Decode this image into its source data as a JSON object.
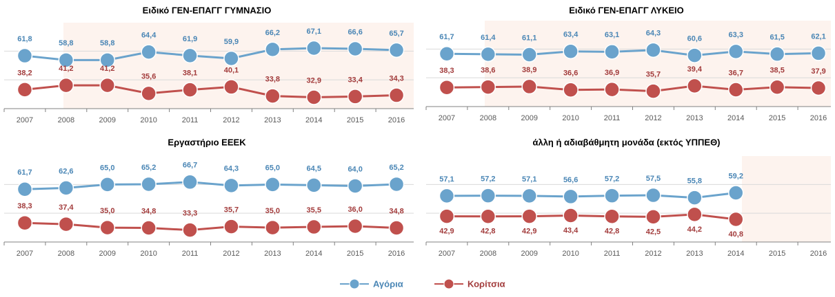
{
  "chart_data": [
    {
      "type": "line",
      "title": "Ειδικό ΓΕΝ-ΕΠΑΓΓ ΓΥΜΝΑΣΙΟ",
      "categories": [
        "2007",
        "2008",
        "2009",
        "2010",
        "2011",
        "2012",
        "2013",
        "2014",
        "2015",
        "2016"
      ],
      "ylim": [
        25,
        80
      ],
      "yticks": [
        25,
        45,
        65
      ],
      "grid": true,
      "series": [
        {
          "color": "#6aa3cc",
          "values": [
            61.8,
            58.8,
            58.8,
            64.4,
            61.9,
            59.9,
            66.2,
            67.1,
            66.6,
            65.7
          ],
          "value_labels": [
            "61,8",
            "58,8",
            "58,8",
            "64,4",
            "61,9",
            "59,9",
            "66,2",
            "67,1",
            "66,6",
            "65,7"
          ]
        },
        {
          "color": "#c0504d",
          "values": [
            38.2,
            41.2,
            41.2,
            35.6,
            38.1,
            40.1,
            33.8,
            32.9,
            33.4,
            34.3
          ],
          "value_labels": [
            "38,2",
            "41,2",
            "41,2",
            "35,6",
            "38,1",
            "40,1",
            "33,8",
            "32,9",
            "33,4",
            "34,3"
          ]
        }
      ]
    },
    {
      "type": "line",
      "title": "Ειδικό ΓΕΝ-ΕΠΑΓΓ ΛΥΚΕΙΟ",
      "categories": [
        "2007",
        "2008",
        "2009",
        "2010",
        "2011",
        "2012",
        "2013",
        "2014",
        "2015",
        "2016"
      ],
      "ylim": [
        25,
        80
      ],
      "yticks": [
        25,
        45,
        65
      ],
      "grid": true,
      "series": [
        {
          "color": "#6aa3cc",
          "values": [
            61.7,
            61.4,
            61.1,
            63.4,
            63.1,
            64.3,
            60.6,
            63.3,
            61.5,
            62.1
          ],
          "value_labels": [
            "61,7",
            "61,4",
            "61,1",
            "63,4",
            "63,1",
            "64,3",
            "60,6",
            "63,3",
            "61,5",
            "62,1"
          ]
        },
        {
          "color": "#c0504d",
          "values": [
            38.3,
            38.6,
            38.9,
            36.6,
            36.9,
            35.7,
            39.4,
            36.7,
            38.5,
            37.9
          ],
          "value_labels": [
            "38,3",
            "38,6",
            "38,9",
            "36,6",
            "36,9",
            "35,7",
            "39,4",
            "36,7",
            "38,5",
            "37,9"
          ]
        }
      ]
    },
    {
      "type": "line",
      "title": "Εργαστήριο ΕΕΕΚ",
      "categories": [
        "2007",
        "2008",
        "2009",
        "2010",
        "2011",
        "2012",
        "2013",
        "2014",
        "2015",
        "2016"
      ],
      "ylim": [
        25,
        80
      ],
      "yticks": [
        25,
        45,
        65
      ],
      "grid": true,
      "series": [
        {
          "color": "#6aa3cc",
          "values": [
            61.7,
            62.6,
            65.0,
            65.2,
            66.7,
            64.3,
            65.0,
            64.5,
            64.0,
            65.2
          ],
          "value_labels": [
            "61,7",
            "62,6",
            "65,0",
            "65,2",
            "66,7",
            "64,3",
            "65,0",
            "64,5",
            "64,0",
            "65,2"
          ]
        },
        {
          "color": "#c0504d",
          "values": [
            38.3,
            37.4,
            35.0,
            34.8,
            33.3,
            35.7,
            35.0,
            35.5,
            36.0,
            34.8
          ],
          "value_labels": [
            "38,3",
            "37,4",
            "35,0",
            "34,8",
            "33,3",
            "35,7",
            "35,0",
            "35,5",
            "36,0",
            "34,8"
          ]
        }
      ]
    },
    {
      "type": "line",
      "title": "άλλη ή αδιαβάθμητη μονάδα (εκτός ΥΠΠΕΘ)",
      "categories": [
        "2007",
        "2008",
        "2009",
        "2010",
        "2011",
        "2012",
        "2013",
        "2014",
        "2015",
        "2016"
      ],
      "ylim": [
        25,
        80
      ],
      "yticks": [
        25,
        45,
        65
      ],
      "grid": true,
      "series": [
        {
          "color": "#6aa3cc",
          "values": [
            57.1,
            57.2,
            57.1,
            56.6,
            57.2,
            57.5,
            55.8,
            59.2,
            null,
            null
          ],
          "value_labels": [
            "57,1",
            "57,2",
            "57,1",
            "56,6",
            "57,2",
            "57,5",
            "55,8",
            "59,2",
            null,
            null
          ]
        },
        {
          "color": "#c0504d",
          "values": [
            42.9,
            42.8,
            42.9,
            43.4,
            42.8,
            42.5,
            44.2,
            40.8,
            null,
            null
          ],
          "value_labels": [
            "42,9",
            "42,8",
            "42,9",
            "43,4",
            "42,8",
            "42,5",
            "44,2",
            "40,8",
            null,
            null
          ]
        }
      ]
    }
  ],
  "legend": [
    {
      "name": "Αγόρια",
      "color": "#6aa3cc"
    },
    {
      "name": "Κορίτσια",
      "color": "#c0504d"
    }
  ]
}
